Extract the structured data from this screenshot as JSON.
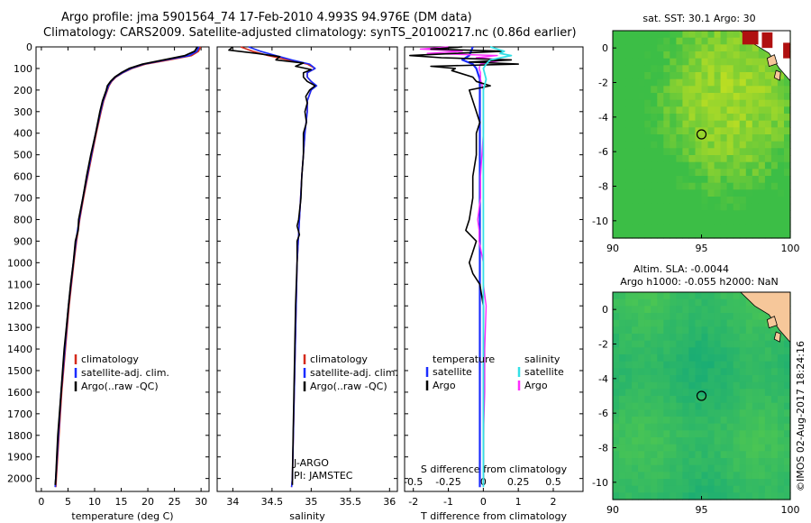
{
  "header": {
    "title_line1": "Argo profile: jma 5901564_74 17-Feb-2010 4.993S 94.976E (DM data)",
    "title_line2": "Climatology: CARS2009. Satellite-adjusted climatology: synTS_20100217.nc (0.86d earlier)"
  },
  "colors": {
    "climatology": "#d42a1c",
    "satellite": "#1a2cff",
    "argo": "#000000",
    "sat_salinity": "#33e0e6",
    "argo_salinity": "#ff2bff"
  },
  "depth_axis": {
    "ticks": [
      0,
      100,
      200,
      300,
      400,
      500,
      600,
      700,
      800,
      900,
      1000,
      1100,
      1200,
      1300,
      1400,
      1500,
      1600,
      1700,
      1800,
      1900,
      2000
    ],
    "range": [
      0,
      2060
    ]
  },
  "chart_data": [
    {
      "id": "temperature",
      "type": "line",
      "xlabel": "temperature (deg C)",
      "xlim": [
        -1,
        31.5
      ],
      "xticks": [
        0,
        5,
        10,
        15,
        20,
        25,
        30
      ],
      "legend": [
        "climatology",
        "satellite-adj. clim.",
        "Argo(..raw -QC)"
      ],
      "series": [
        {
          "name": "climatology",
          "depth": [
            0,
            20,
            40,
            60,
            80,
            100,
            120,
            140,
            160,
            180,
            200,
            250,
            300,
            400,
            500,
            600,
            700,
            800,
            900,
            1000,
            1200,
            1400,
            1600,
            1800,
            2000,
            2040
          ],
          "values": [
            29.9,
            29.5,
            28.2,
            24.0,
            19.5,
            17.0,
            15.3,
            14.0,
            13.2,
            12.7,
            12.4,
            11.7,
            11.2,
            10.3,
            9.5,
            8.7,
            7.9,
            7.2,
            6.6,
            6.1,
            5.2,
            4.5,
            3.8,
            3.3,
            2.8,
            2.7
          ]
        },
        {
          "name": "satellite-adj. clim.",
          "depth": [
            0,
            20,
            40,
            60,
            80,
            100,
            120,
            140,
            160,
            180,
            200,
            250,
            300,
            400,
            500,
            600,
            700,
            800,
            900,
            1000,
            1200,
            1400,
            1600,
            1800,
            2000,
            2040
          ],
          "values": [
            29.6,
            29.2,
            27.8,
            23.4,
            19.2,
            16.8,
            15.2,
            13.9,
            13.1,
            12.6,
            12.3,
            11.6,
            11.1,
            10.2,
            9.4,
            8.6,
            7.8,
            7.1,
            6.5,
            6.0,
            5.1,
            4.4,
            3.7,
            3.2,
            2.7,
            2.6
          ]
        },
        {
          "name": "Argo(..raw -QC)",
          "depth": [
            0,
            20,
            40,
            60,
            80,
            100,
            120,
            140,
            160,
            180,
            200,
            250,
            300,
            400,
            500,
            600,
            700,
            800,
            850,
            900,
            1000,
            1100,
            1200,
            1300,
            1400,
            1500,
            1600,
            1700,
            1800,
            1900,
            2000,
            2030
          ],
          "values": [
            29.3,
            28.8,
            27.0,
            23.0,
            19.0,
            16.5,
            15.0,
            13.8,
            13.0,
            12.4,
            12.2,
            11.5,
            11.0,
            10.2,
            9.3,
            8.5,
            7.8,
            7.0,
            6.9,
            6.4,
            6.0,
            5.5,
            5.1,
            4.7,
            4.3,
            4.0,
            3.7,
            3.4,
            3.1,
            2.9,
            2.7,
            2.6
          ]
        }
      ]
    },
    {
      "id": "salinity",
      "type": "line",
      "xlabel": "salinity",
      "xlim": [
        33.8,
        36.1
      ],
      "xticks": [
        34,
        34.5,
        35,
        35.5,
        36
      ],
      "xticklabels": [
        "34",
        "34.5",
        "35",
        "35.5",
        "36"
      ],
      "legend": [
        "climatology",
        "satellite-adj. clim.",
        "Argo(..raw -QC)"
      ],
      "annotations": [
        "J-ARGO",
        "PI: JAMSTEC"
      ],
      "series": [
        {
          "name": "climatology",
          "depth": [
            0,
            20,
            40,
            60,
            80,
            100,
            120,
            140,
            160,
            180,
            200,
            250,
            300,
            400,
            500,
            600,
            800,
            1000,
            1500,
            2000,
            2040
          ],
          "values": [
            34.1,
            34.25,
            34.45,
            34.7,
            34.95,
            35.05,
            34.95,
            34.95,
            35.0,
            35.05,
            35.0,
            34.95,
            34.95,
            34.92,
            34.9,
            34.88,
            34.85,
            34.82,
            34.79,
            34.76,
            34.75
          ]
        },
        {
          "name": "satellite-adj. clim.",
          "depth": [
            0,
            20,
            40,
            60,
            80,
            100,
            120,
            140,
            160,
            180,
            200,
            250,
            300,
            400,
            500,
            600,
            800,
            1000,
            1500,
            2000,
            2040
          ],
          "values": [
            34.2,
            34.35,
            34.55,
            34.75,
            34.98,
            35.05,
            34.95,
            34.95,
            35.0,
            35.07,
            35.0,
            34.95,
            34.95,
            34.92,
            34.9,
            34.88,
            34.85,
            34.82,
            34.79,
            34.76,
            34.75
          ]
        },
        {
          "name": "Argo(..raw -QC)",
          "depth": [
            0,
            15,
            30,
            45,
            60,
            75,
            90,
            105,
            120,
            140,
            160,
            180,
            200,
            230,
            260,
            300,
            350,
            400,
            500,
            600,
            700,
            800,
            830,
            870,
            900,
            1000,
            1100,
            1200,
            1400,
            1600,
            1800,
            2000,
            2030
          ],
          "values": [
            34.0,
            33.95,
            34.3,
            34.6,
            34.55,
            34.9,
            34.8,
            35.0,
            34.9,
            34.9,
            34.95,
            35.05,
            34.98,
            34.93,
            34.95,
            34.92,
            34.94,
            34.9,
            34.9,
            34.88,
            34.87,
            34.84,
            34.82,
            34.85,
            34.82,
            34.82,
            34.81,
            34.8,
            34.79,
            34.78,
            34.77,
            34.76,
            34.76
          ]
        }
      ]
    },
    {
      "id": "difference",
      "type": "line",
      "xlabel": "T difference from climatology",
      "xlabel_top": "S difference from climatology",
      "xlim": [
        -2.25,
        2.85
      ],
      "xticks_T": [
        -2,
        -1,
        0,
        1,
        2
      ],
      "xticklabels_T": [
        "-2",
        "-1",
        "0",
        "1",
        "2"
      ],
      "xticklabels_S": [
        "-0.5",
        "-0.25",
        "0",
        "0.25",
        "0.5"
      ],
      "legend_temperature": {
        "title": "temperature",
        "items": [
          "satellite",
          "Argo"
        ]
      },
      "legend_salinity": {
        "title": "salinity",
        "items": [
          "satellite",
          "Argo"
        ]
      },
      "series": [
        {
          "name": "T satellite",
          "depth": [
            0,
            40,
            60,
            80,
            100,
            150,
            200,
            300,
            500,
            800,
            1000,
            1500,
            2000,
            2040
          ],
          "values": [
            -0.3,
            -0.4,
            -0.6,
            -0.3,
            -0.2,
            -0.1,
            -0.1,
            -0.1,
            -0.1,
            -0.1,
            -0.1,
            -0.1,
            -0.1,
            -0.1
          ]
        },
        {
          "name": "T Argo",
          "depth": [
            0,
            10,
            20,
            30,
            40,
            50,
            60,
            70,
            80,
            90,
            100,
            110,
            120,
            140,
            160,
            180,
            200,
            250,
            300,
            350,
            400,
            500,
            600,
            700,
            800,
            850,
            900,
            950,
            1000,
            1050,
            1100,
            1200,
            1400,
            1600,
            1800,
            2000,
            2030
          ],
          "values": [
            -0.6,
            -1.5,
            0.6,
            -0.8,
            -2.1,
            -1.2,
            0.8,
            -0.4,
            1.0,
            -1.5,
            -0.8,
            -0.9,
            -0.7,
            -0.3,
            -0.2,
            0.2,
            -0.4,
            -0.3,
            -0.2,
            -0.1,
            -0.2,
            -0.2,
            -0.3,
            -0.3,
            -0.4,
            -0.5,
            -0.2,
            -0.3,
            -0.4,
            -0.3,
            -0.1,
            0.0,
            0.0,
            0.0,
            0.0,
            0.0,
            0.0
          ]
        },
        {
          "name": "S satellite",
          "depth": [
            0,
            20,
            30,
            40,
            60,
            80,
            100,
            150,
            200,
            300,
            500,
            800,
            1000,
            1500,
            2000,
            2040
          ],
          "values": [
            0.05,
            0.15,
            0.12,
            0.2,
            0.05,
            0.02,
            0.0,
            0.02,
            0.0,
            0.0,
            0.0,
            0.0,
            0.0,
            0.0,
            0.0,
            0.0
          ]
        },
        {
          "name": "S Argo",
          "depth": [
            0,
            10,
            20,
            30,
            40,
            50,
            60,
            80,
            100,
            120,
            150,
            200,
            300,
            400,
            500,
            600,
            700,
            800,
            850,
            900,
            1000,
            1100,
            1200,
            1400,
            1600,
            1800,
            2000,
            2030
          ],
          "values": [
            -0.25,
            -0.45,
            -0.15,
            -0.4,
            0.1,
            -0.05,
            0.15,
            -0.02,
            -0.03,
            -0.02,
            -0.02,
            0.0,
            0.0,
            0.0,
            -0.01,
            -0.02,
            -0.02,
            -0.04,
            -0.03,
            -0.03,
            0.0,
            0.0,
            0.02,
            0.01,
            0.01,
            0.0,
            0.0,
            0.0
          ]
        }
      ]
    },
    {
      "id": "sst_map",
      "type": "heatmap",
      "title": "sat. SST: 30.1 Argo: 30",
      "xlim": [
        90,
        100
      ],
      "ylim": [
        -11,
        1
      ],
      "xticks": [
        90,
        95,
        100
      ],
      "yticks": [
        0,
        -2,
        -4,
        -6,
        -8,
        -10
      ],
      "argo_position": {
        "lon": 95.0,
        "lat": -5.0
      }
    },
    {
      "id": "sla_map",
      "type": "heatmap",
      "title": "Altim. SLA: -0.0044",
      "subtitle": "Argo h1000: -0.055 h2000: NaN",
      "xlim": [
        90,
        100
      ],
      "ylim": [
        -11,
        1
      ],
      "xticks": [
        90,
        95,
        100
      ],
      "yticks": [
        0,
        -2,
        -4,
        -6,
        -8,
        -10
      ],
      "argo_position": {
        "lon": 95.0,
        "lat": -5.0
      }
    }
  ],
  "footer": {
    "stamp": "©IMOS 02-Aug-2017 18:24:16"
  }
}
